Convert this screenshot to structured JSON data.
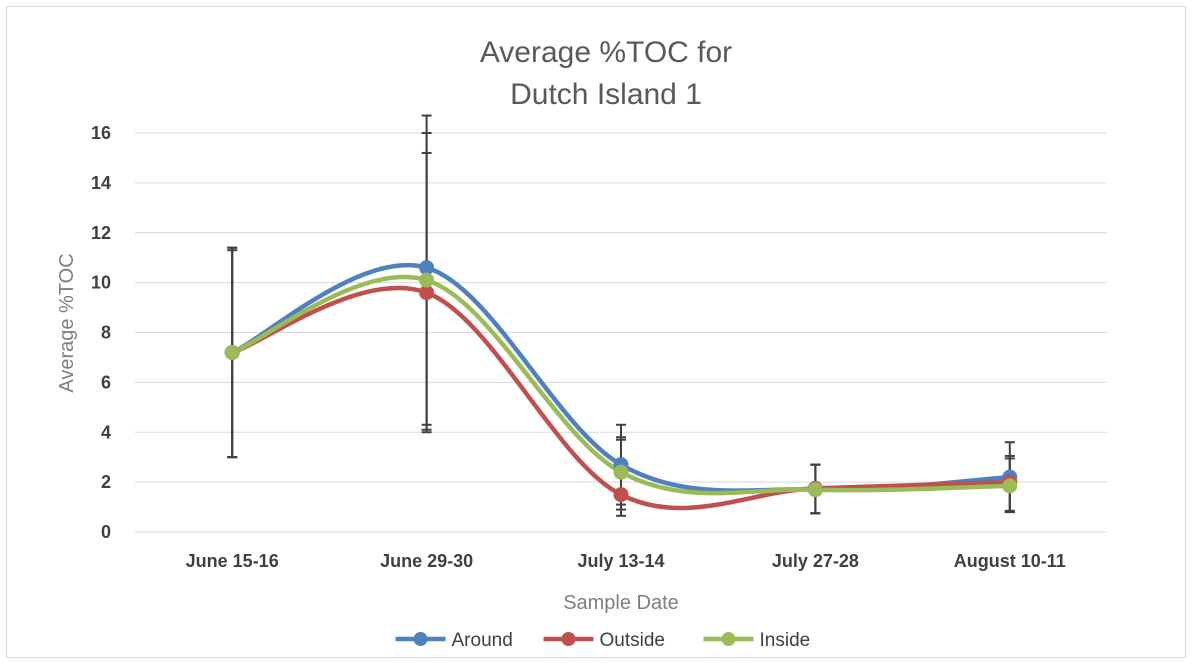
{
  "chart_data": {
    "type": "line",
    "title_lines": [
      "Average %TOC for",
      "Dutch Island 1"
    ],
    "xlabel": "Sample Date",
    "ylabel": "Average %TOC",
    "categories": [
      "June 15-16",
      "June 29-30",
      "July 13-14",
      "July 27-28",
      "August 10-11"
    ],
    "ylim": [
      0,
      16
    ],
    "yticks": [
      0,
      2,
      4,
      6,
      8,
      10,
      12,
      14,
      16
    ],
    "grid": true,
    "legend_position": "bottom",
    "smoothed": true,
    "series": [
      {
        "name": "Around",
        "color": "#4f81bd",
        "values": [
          7.2,
          10.6,
          2.7,
          1.7,
          2.2
        ],
        "err_low": [
          3.0,
          4.0,
          1.1,
          0.75,
          0.8
        ],
        "err_high": [
          11.4,
          16.7,
          4.3,
          2.7,
          3.6
        ]
      },
      {
        "name": "Outside",
        "color": "#c0504d",
        "values": [
          7.2,
          9.6,
          1.5,
          1.75,
          2.0
        ],
        "err_low": [
          3.0,
          4.1,
          0.65,
          0.75,
          0.85
        ],
        "err_high": [
          11.4,
          15.2,
          3.7,
          2.7,
          3.05
        ]
      },
      {
        "name": "Inside",
        "color": "#9bbb59",
        "values": [
          7.2,
          10.1,
          2.4,
          1.7,
          1.85
        ],
        "err_low": [
          3.0,
          4.3,
          0.9,
          0.75,
          0.8
        ],
        "err_high": [
          11.3,
          16.0,
          3.8,
          2.7,
          2.95
        ]
      }
    ]
  }
}
